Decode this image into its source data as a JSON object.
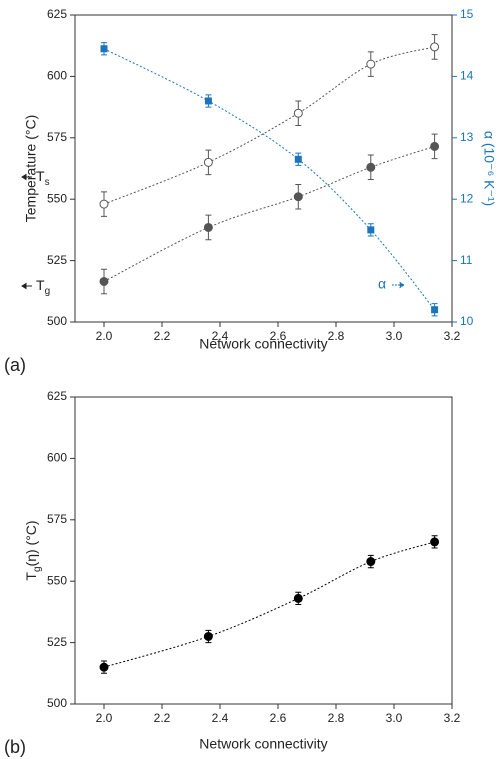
{
  "chart_data": [
    {
      "type": "scatter",
      "panel": "(a)",
      "xlabel": "Network connectivity",
      "ylabel": "Temperature (°C)",
      "y2label": "α (10⁻⁶ K⁻¹)",
      "y2color": "#1a75bc",
      "x": [
        2.0,
        2.36,
        2.67,
        2.92,
        3.14
      ],
      "xlim": [
        1.9,
        3.2
      ],
      "xticks": [
        {
          "value": 2,
          "label": "2.0"
        },
        2.2,
        2.4,
        2.6,
        2.8,
        {
          "value": 3,
          "label": "3.0"
        },
        3.2
      ],
      "ylim": [
        500,
        625
      ],
      "yticks": [
        500,
        525,
        550,
        575,
        600,
        625
      ],
      "y2lim": [
        10,
        15
      ],
      "y2ticks": [
        10,
        11,
        12,
        13,
        14,
        15
      ],
      "series": [
        {
          "color": "#555555",
          "marker": "circle-open",
          "values": [
            548,
            565,
            585,
            605,
            612
          ],
          "errors": [
            5,
            5,
            5,
            5,
            5
          ]
        },
        {
          "color": "#555555",
          "marker": "circle",
          "values": [
            516.5,
            538.5,
            551,
            563,
            571.5
          ],
          "errors": [
            5,
            5,
            5,
            5,
            5
          ]
        },
        {
          "color": "#1a75bc",
          "marker": "square",
          "axis": "y2",
          "values": [
            14.45,
            13.6,
            12.65,
            11.5,
            10.2
          ],
          "errors": [
            0.1,
            0.1,
            0.1,
            0.1,
            0.1
          ]
        }
      ],
      "annotations": [
        {
          "text": "T",
          "sub": "s"
        },
        {
          "text": "T",
          "sub": "g"
        },
        {
          "text": "α"
        }
      ]
    },
    {
      "type": "scatter",
      "panel": "(b)",
      "xlabel": "Network connectivity",
      "ylabel": {
        "text": "T",
        "sub": "g",
        "tail": "(η) (°C)"
      },
      "x": [
        2.0,
        2.36,
        2.67,
        2.92,
        3.14
      ],
      "xlim": [
        1.9,
        3.2
      ],
      "xticks": [
        {
          "value": 2,
          "label": "2.0"
        },
        2.2,
        2.4,
        2.6,
        2.8,
        {
          "value": 3,
          "label": "3.0"
        },
        3.2
      ],
      "ylim": [
        500,
        625
      ],
      "yticks": [
        500,
        525,
        550,
        575,
        600,
        625
      ],
      "series": [
        {
          "color": "#000000",
          "marker": "circle",
          "values": [
            515,
            527.5,
            543,
            558,
            566
          ],
          "errors": [
            2.5,
            2.5,
            2.5,
            2.5,
            2.5
          ]
        }
      ]
    }
  ]
}
